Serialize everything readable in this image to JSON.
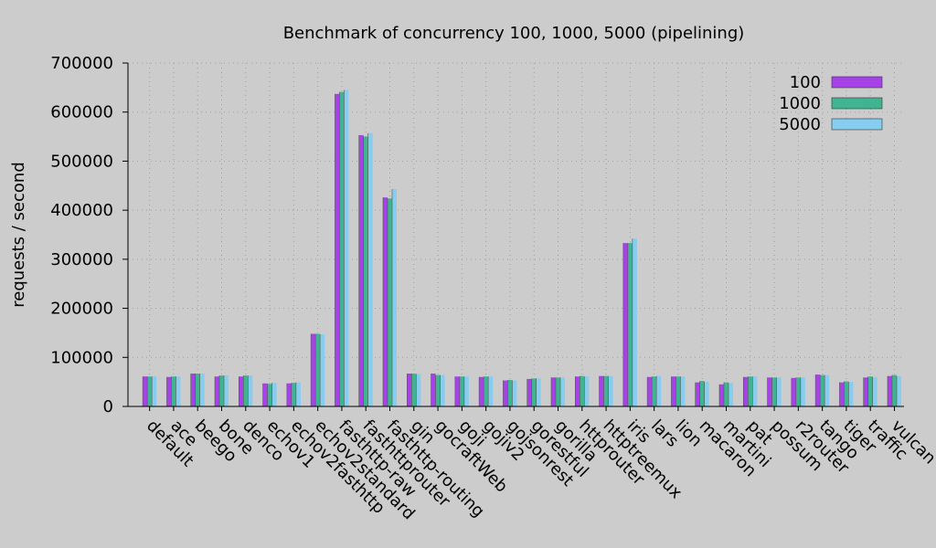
{
  "chart_data": {
    "type": "bar",
    "title": "Benchmark of concurrency 100, 1000, 5000 (pipelining)",
    "xlabel": "",
    "ylabel": "requests / second",
    "ylim": [
      0,
      700000
    ],
    "yticks": [
      0,
      100000,
      200000,
      300000,
      400000,
      500000,
      600000,
      700000
    ],
    "ytick_labels": [
      "0",
      "100000",
      "200000",
      "300000",
      "400000",
      "500000",
      "600000",
      "700000"
    ],
    "grid": true,
    "legend_position": "top-right",
    "categories": [
      "default",
      "ace",
      "beego",
      "bone",
      "denco",
      "echov1",
      "echov2fasthttp",
      "echov2standard",
      "fasthttp-raw",
      "fasthttprouter",
      "fasthttp-routing",
      "gin",
      "gocraftWeb",
      "goji",
      "gojiv2",
      "gojsonrest",
      "gorestful",
      "gorilla",
      "httprouter",
      "httptreemux",
      "iris",
      "lars",
      "lion",
      "macaron",
      "martini",
      "pat",
      "possum",
      "r2router",
      "tango",
      "tiger",
      "traffic",
      "vulcan"
    ],
    "series": [
      {
        "name": "100",
        "color": "#a742e8",
        "values": [
          61000,
          60000,
          67000,
          61000,
          61000,
          47000,
          47000,
          148000,
          637000,
          553000,
          426000,
          67000,
          67000,
          61000,
          60000,
          53000,
          56000,
          59000,
          61000,
          62000,
          333000,
          60000,
          61000,
          49000,
          45000,
          60000,
          59000,
          58000,
          65000,
          49000,
          59000,
          62000
        ]
      },
      {
        "name": "1000",
        "color": "#40b490",
        "values": [
          61000,
          61000,
          67000,
          63000,
          63000,
          46000,
          48000,
          148000,
          641000,
          550000,
          424000,
          67000,
          64000,
          61000,
          61000,
          54000,
          57000,
          59000,
          62000,
          62000,
          333000,
          61000,
          61000,
          52000,
          49000,
          61000,
          59000,
          59000,
          64000,
          51000,
          61000,
          64000
        ]
      },
      {
        "name": "5000",
        "color": "#86cdf0",
        "values": [
          61000,
          61000,
          67000,
          63000,
          63000,
          48000,
          49000,
          147000,
          645000,
          557000,
          443000,
          66000,
          64000,
          61000,
          61000,
          53000,
          57000,
          59000,
          61000,
          62000,
          342000,
          62000,
          61000,
          50000,
          48000,
          61000,
          59000,
          59000,
          64000,
          50000,
          60000,
          62000
        ]
      }
    ]
  }
}
